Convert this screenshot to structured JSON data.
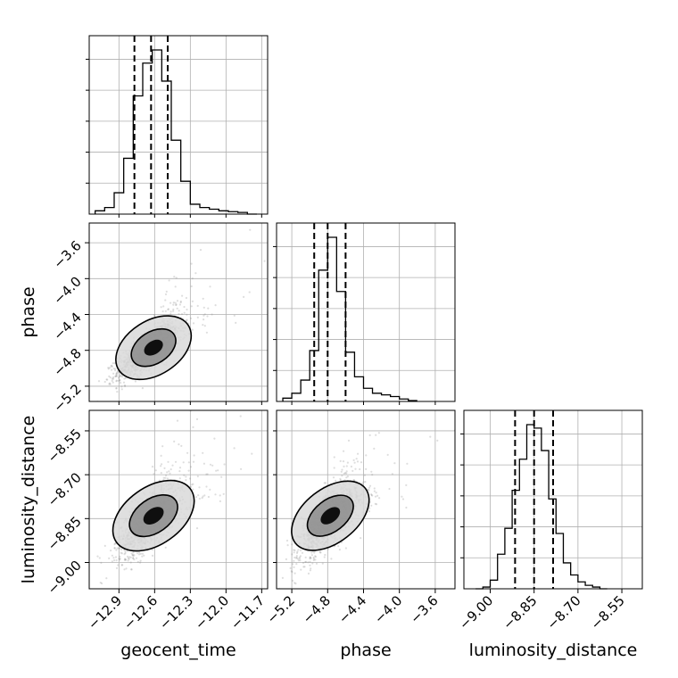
{
  "chart_data": {
    "type": "corner",
    "grid": true,
    "parameters": [
      {
        "name": "geocent_time",
        "label": "geocent_time",
        "range": [
          -13.15,
          -11.65
        ],
        "ticks": [
          -12.9,
          -12.6,
          -12.3,
          -12.0,
          -11.7
        ],
        "tick_labels": [
          "−12.9",
          "−12.6",
          "−12.3",
          "−12.0",
          "−11.7"
        ],
        "quantiles": [
          -12.77,
          -12.63,
          -12.49
        ],
        "hist_edges": [
          -13.1,
          -13.02,
          -12.94,
          -12.86,
          -12.78,
          -12.7,
          -12.62,
          -12.54,
          -12.46,
          -12.38,
          -12.3,
          -12.22,
          -12.14,
          -12.06,
          -11.98,
          -11.9,
          -11.82,
          -11.74
        ],
        "hist_counts": [
          0.02,
          0.04,
          0.13,
          0.34,
          0.72,
          0.92,
          1.0,
          0.81,
          0.45,
          0.2,
          0.06,
          0.04,
          0.03,
          0.02,
          0.015,
          0.01,
          0.0
        ]
      },
      {
        "name": "phase",
        "label": "phase",
        "range": [
          -5.37,
          -3.38
        ],
        "ticks": [
          -5.2,
          -4.8,
          -4.4,
          -4.0,
          -3.6
        ],
        "tick_labels": [
          "−5.2",
          "−4.8",
          "−4.4",
          "−4.0",
          "−3.6"
        ],
        "quantiles": [
          -4.95,
          -4.8,
          -4.6
        ],
        "hist_edges": [
          -5.3,
          -5.2,
          -5.1,
          -5.0,
          -4.9,
          -4.8,
          -4.7,
          -4.6,
          -4.5,
          -4.4,
          -4.3,
          -4.2,
          -4.1,
          -4.0,
          -3.9,
          -3.8
        ],
        "hist_counts": [
          0.02,
          0.05,
          0.13,
          0.31,
          0.8,
          1.0,
          0.67,
          0.3,
          0.15,
          0.08,
          0.05,
          0.04,
          0.03,
          0.015,
          0.005
        ]
      },
      {
        "name": "luminosity_distance",
        "label": "luminosity_distance",
        "range": [
          -9.09,
          -8.48
        ],
        "ticks": [
          -9.0,
          -8.85,
          -8.7,
          -8.55
        ],
        "tick_labels": [
          "−9.00",
          "−8.85",
          "−8.70",
          "−8.55"
        ],
        "quantiles": [
          -8.915,
          -8.85,
          -8.785
        ],
        "hist_edges": [
          -9.05,
          -9.025,
          -9.0,
          -8.975,
          -8.95,
          -8.925,
          -8.9,
          -8.875,
          -8.85,
          -8.825,
          -8.8,
          -8.775,
          -8.75,
          -8.725,
          -8.7,
          -8.675,
          -8.65,
          -8.625,
          -8.6
        ],
        "hist_counts": [
          0.0,
          0.01,
          0.05,
          0.2,
          0.35,
          0.57,
          0.75,
          0.95,
          0.93,
          0.8,
          0.52,
          0.32,
          0.15,
          0.08,
          0.04,
          0.02,
          0.01,
          0.0
        ]
      }
    ],
    "correlation": [
      [
        1.0,
        0.78,
        0.72
      ],
      [
        0.78,
        1.0,
        0.75
      ],
      [
        0.72,
        0.75,
        1.0
      ]
    ],
    "contour_levels": [
      0.39,
      0.86
    ],
    "colors": {
      "line": "#000000",
      "grid": "#b0b0b0",
      "points": "#8a8a8a",
      "fill_dark": "#000000",
      "fill_mid": "#8c8c8c",
      "fill_light": "#d9d9d9"
    }
  }
}
